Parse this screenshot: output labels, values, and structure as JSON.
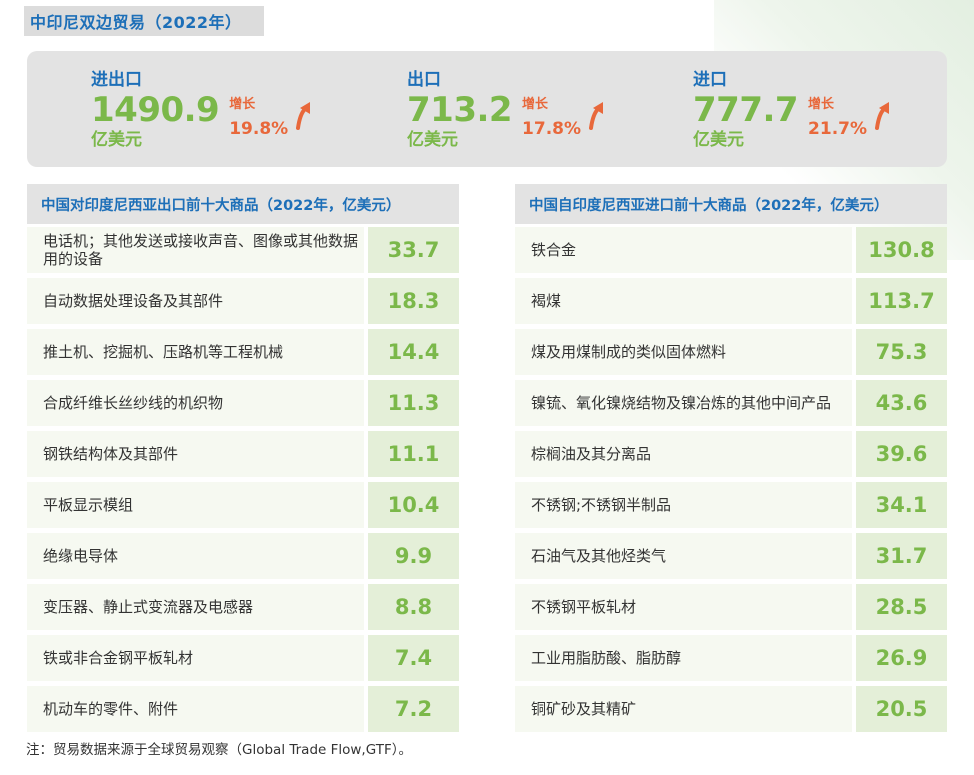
{
  "title": "中印尼双边贸易（2022年）",
  "summary": [
    {
      "label": "进出口",
      "value": "1490.9",
      "unit": "亿美元",
      "growth_label": "增长",
      "growth": "19.8%"
    },
    {
      "label": "出口",
      "value": "713.2",
      "unit": "亿美元",
      "growth_label": "增长",
      "growth": "17.8%"
    },
    {
      "label": "进口",
      "value": "777.7",
      "unit": "亿美元",
      "growth_label": "增长",
      "growth": "21.7%"
    }
  ],
  "export_table": {
    "header": "中国对印度尼西亚出口前十大商品（2022年，亿美元）",
    "rows": [
      {
        "name": "电话机；其他发送或接收声音、图像或其他数据用的设备",
        "value": "33.7"
      },
      {
        "name": "自动数据处理设备及其部件",
        "value": "18.3"
      },
      {
        "name": "推土机、挖掘机、压路机等工程机械",
        "value": "14.4"
      },
      {
        "name": "合成纤维长丝纱线的机织物",
        "value": "11.3"
      },
      {
        "name": "钢铁结构体及其部件",
        "value": "11.1"
      },
      {
        "name": "平板显示模组",
        "value": "10.4"
      },
      {
        "name": "绝缘电导体",
        "value": "9.9"
      },
      {
        "name": "变压器、静止式变流器及电感器",
        "value": "8.8"
      },
      {
        "name": "铁或非合金钢平板轧材",
        "value": "7.4"
      },
      {
        "name": "机动车的零件、附件",
        "value": "7.2"
      }
    ]
  },
  "import_table": {
    "header": "中国自印度尼西亚进口前十大商品（2022年，亿美元）",
    "rows": [
      {
        "name": "铁合金",
        "value": "130.8"
      },
      {
        "name": "褐煤",
        "value": "113.7"
      },
      {
        "name": "煤及用煤制成的类似固体燃料",
        "value": "75.3"
      },
      {
        "name": "镍锍、氧化镍烧结物及镍冶炼的其他中间产品",
        "value": "43.6"
      },
      {
        "name": "棕榈油及其分离品",
        "value": "39.6"
      },
      {
        "name": "不锈钢;不锈钢半制品",
        "value": "34.1"
      },
      {
        "name": "石油气及其他烃类气",
        "value": "31.7"
      },
      {
        "name": "不锈钢平板轧材",
        "value": "28.5"
      },
      {
        "name": "工业用脂肪酸、脂肪醇",
        "value": "26.9"
      },
      {
        "name": "铜矿砂及其精矿",
        "value": "20.5"
      }
    ]
  },
  "footnote": "注：贸易数据来源于全球贸易观察（Global Trade Flow,GTF）。",
  "colors": {
    "title_blue": "#1d6fb8",
    "value_green": "#7bb84a",
    "growth_orange": "#e8683b"
  },
  "icons": {
    "growth": "up-arrow-icon"
  }
}
